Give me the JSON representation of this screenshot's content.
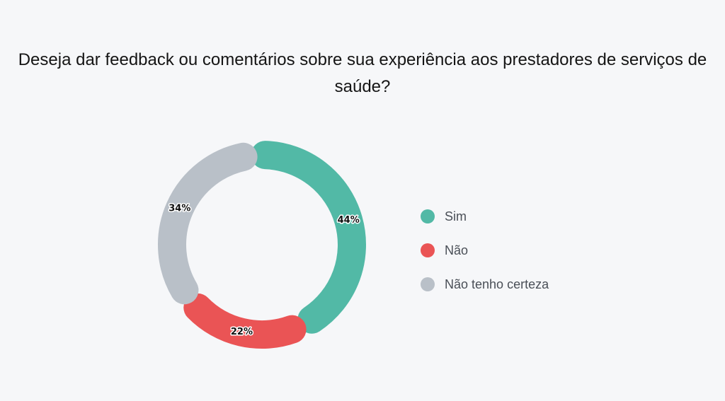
{
  "chart_data": {
    "type": "pie",
    "variant": "donut",
    "title": "Deseja dar feedback ou comentários sobre sua experiência aos prestadores de serviços de saúde?",
    "slices": [
      {
        "label": "Sim",
        "value": 44,
        "display": "44%",
        "color": "#52b9a6"
      },
      {
        "label": "Não",
        "value": 22,
        "display": "22%",
        "color": "#ea5455"
      },
      {
        "label": "Não tenho certeza",
        "value": 34,
        "display": "34%",
        "color": "#b9c0c8"
      }
    ],
    "legend_position": "right"
  }
}
